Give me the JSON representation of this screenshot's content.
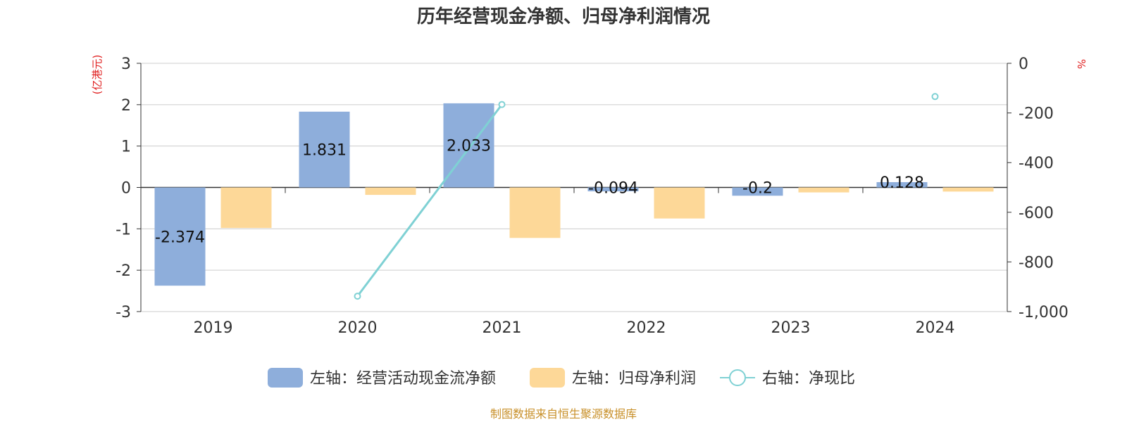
{
  "colors": {
    "cash_flow": "#8eaedb",
    "net_profit": "#fdd898",
    "ratio": "#7fd1d4",
    "unit": "#e02020",
    "source": "#c8902a",
    "grid": "#cccccc",
    "axis": "#333333"
  },
  "chart_data": {
    "type": "bar",
    "title": "历年经营现金净额、归母净利润情况",
    "categories": [
      "2019",
      "2020",
      "2021",
      "2022",
      "2023",
      "2024"
    ],
    "left_axis": {
      "unit": "(亿港元)",
      "ylim": [
        -3,
        3
      ],
      "ticks": [
        3,
        2,
        1,
        0,
        -1,
        -2,
        -3
      ],
      "tick_labels": [
        "3",
        "2",
        "1",
        "0",
        "-1",
        "-2",
        "-3"
      ]
    },
    "right_axis": {
      "unit": "%",
      "ylim": [
        -1000,
        0
      ],
      "ticks": [
        0,
        -200,
        -400,
        -600,
        -800,
        -1000
      ],
      "tick_labels": [
        "0",
        "-200",
        "-400",
        "-600",
        "-800",
        "-1,000"
      ]
    },
    "series": [
      {
        "name": "左轴：经营活动现金流净额",
        "type": "bar",
        "axis": "left",
        "values": [
          -2.374,
          1.831,
          2.033,
          -0.094,
          -0.2,
          0.128
        ],
        "labels": [
          "-2.374",
          "1.831",
          "2.033",
          "-0.094",
          "-0.2",
          "0.128"
        ]
      },
      {
        "name": "左轴：归母净利润",
        "type": "bar",
        "axis": "left",
        "values": [
          -0.98,
          -0.18,
          -1.22,
          -0.75,
          -0.12,
          -0.1
        ]
      },
      {
        "name": "右轴：净现比",
        "type": "line",
        "axis": "right",
        "values": [
          null,
          -938,
          -166,
          null,
          null,
          -134
        ]
      }
    ],
    "legend_position": "bottom-center",
    "grid": true
  },
  "source": "制图数据来自恒生聚源数据库"
}
